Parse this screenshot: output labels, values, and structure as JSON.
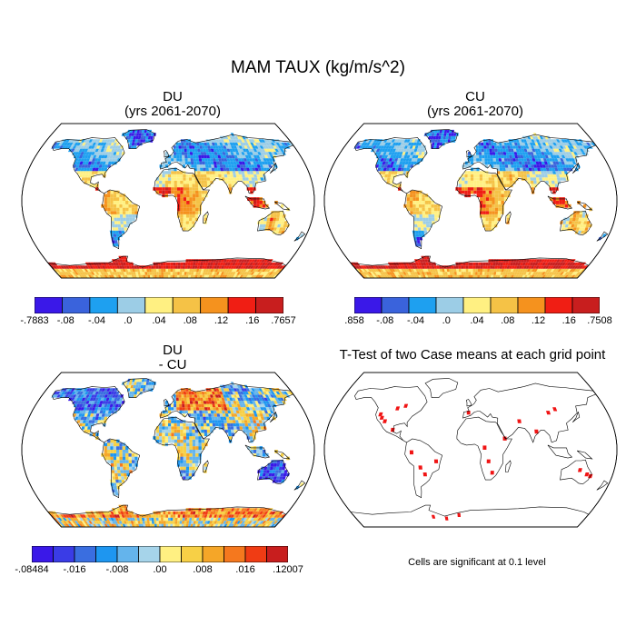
{
  "figure": {
    "title": "MAM TAUX (kg/m/s^2)"
  },
  "panels": [
    {
      "id": "du",
      "title_line1": "DU",
      "title_line2": "(yrs 2061-2070)",
      "colorbar": {
        "colors": [
          "#3a18e8",
          "#3a63dc",
          "#1ea0f0",
          "#9ccde6",
          "#fff082",
          "#f5c246",
          "#f5921e",
          "#f01e14",
          "#c81e1e"
        ],
        "labels": [
          "-.7883",
          "-.08",
          "-.04",
          ".0",
          ".04",
          ".08",
          ".12",
          ".16",
          ".7657"
        ]
      }
    },
    {
      "id": "cu",
      "title_line1": "CU",
      "title_line2": "(yrs 2061-2070)",
      "colorbar": {
        "colors": [
          "#3a18e8",
          "#3a63dc",
          "#1ea0f0",
          "#9ccde6",
          "#fff082",
          "#f5c246",
          "#f5921e",
          "#f01e14",
          "#c81e1e"
        ],
        "labels": [
          ".858",
          "-.08",
          "-.04",
          ".0",
          ".04",
          ".08",
          ".12",
          ".16",
          ".7508"
        ]
      }
    },
    {
      "id": "diff",
      "title_line1": "DU",
      "title_line2": "- CU",
      "colorbar": {
        "colors": [
          "#3a18e8",
          "#3a3ce6",
          "#3a6ee0",
          "#1e96f0",
          "#64b4ec",
          "#a6d4ea",
          "#fff082",
          "#f7d046",
          "#f5a628",
          "#f5781e",
          "#f03c14",
          "#c81e1e"
        ],
        "labels": [
          "-.08484",
          "-.016",
          "-.008",
          ".00",
          ".008",
          ".016",
          ".12007"
        ]
      }
    },
    {
      "id": "ttest",
      "title_line1": "T-Test of two Case means at each grid point",
      "note": "Cells are significant at 0.1 level"
    }
  ]
}
